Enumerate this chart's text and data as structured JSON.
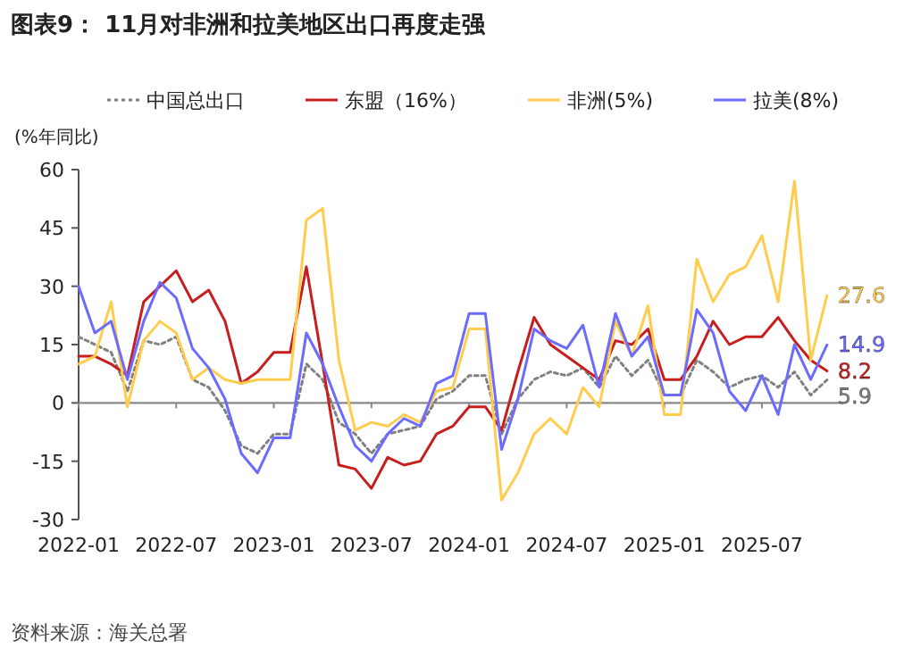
{
  "chart_data": {
    "type": "line",
    "title": "图表9：  11月对非洲和拉美地区出口再度走强",
    "ylabel": "(%年同比)",
    "annotations": [
      "资料来源：海关总署"
    ],
    "x": [
      "2022-01",
      "2022-02",
      "2022-03",
      "2022-04",
      "2022-05",
      "2022-06",
      "2022-07",
      "2022-08",
      "2022-09",
      "2022-10",
      "2022-11",
      "2022-12",
      "2023-01",
      "2023-02",
      "2023-03",
      "2023-04",
      "2023-05",
      "2023-06",
      "2023-07",
      "2023-08",
      "2023-09",
      "2023-10",
      "2023-11",
      "2023-12",
      "2024-01",
      "2024-02",
      "2024-03",
      "2024-04",
      "2024-05",
      "2024-06",
      "2024-07",
      "2024-08",
      "2024-09",
      "2024-10",
      "2024-11",
      "2024-12",
      "2025-01",
      "2025-02",
      "2025-03",
      "2025-04",
      "2025-05",
      "2025-06",
      "2025-07",
      "2025-08",
      "2025-09",
      "2025-10",
      "2025-11"
    ],
    "xlim": [
      "2022-01",
      "2025-12"
    ],
    "xticks": [
      "2022-01",
      "2022-07",
      "2023-01",
      "2023-07",
      "2024-01",
      "2024-07",
      "2025-01",
      "2025-07"
    ],
    "ylim": [
      -30,
      60
    ],
    "yticks": [
      -30,
      -15,
      0,
      15,
      30,
      45,
      60
    ],
    "legend": "top",
    "marker": "none",
    "series": [
      {
        "name": "中国总出口",
        "color": "#808080",
        "line_style": "dotted",
        "values": [
          17,
          15,
          13,
          3,
          16,
          15,
          17,
          6,
          4,
          -2,
          -11,
          -13,
          -8,
          -8,
          10,
          6,
          -5,
          -8,
          -13,
          -8,
          -7,
          -6,
          1,
          3,
          7,
          7,
          -8,
          1,
          6,
          8,
          7,
          9,
          4,
          12,
          7,
          11,
          2,
          2,
          11,
          8,
          4,
          6,
          7,
          4,
          8,
          2,
          5.9
        ],
        "value_labels": [
          null,
          null,
          null,
          null,
          null,
          null,
          null,
          null,
          null,
          null,
          null,
          null,
          null,
          null,
          null,
          null,
          null,
          null,
          null,
          null,
          null,
          null,
          null,
          null,
          null,
          null,
          null,
          null,
          null,
          null,
          null,
          null,
          null,
          null,
          null,
          null,
          null,
          null,
          null,
          null,
          null,
          null,
          null,
          null,
          null,
          null,
          "5.9"
        ]
      },
      {
        "name": "东盟（16%）",
        "color": "#c81e1e",
        "line_style": "solid",
        "values": [
          12,
          12,
          10,
          7,
          26,
          30,
          34,
          26,
          29,
          21,
          5,
          8,
          13,
          13,
          35,
          10,
          -16,
          -17,
          -22,
          -14,
          -16,
          -15,
          -8,
          -6,
          -1,
          -1,
          -7,
          8,
          22,
          15,
          12,
          9,
          6,
          16,
          15,
          19,
          6,
          6,
          12,
          21,
          15,
          17,
          17,
          22,
          16,
          11,
          8.2
        ],
        "value_labels": [
          null,
          null,
          null,
          null,
          null,
          null,
          null,
          null,
          null,
          null,
          null,
          null,
          null,
          null,
          null,
          null,
          null,
          null,
          null,
          null,
          null,
          null,
          null,
          null,
          null,
          null,
          null,
          null,
          null,
          null,
          null,
          null,
          null,
          null,
          null,
          null,
          null,
          null,
          null,
          null,
          null,
          null,
          null,
          null,
          null,
          null,
          "8.2"
        ]
      },
      {
        "name": "非洲(5%)",
        "color": "#ffcc4d",
        "line_style": "solid",
        "values": [
          10,
          12,
          26,
          -1,
          16,
          21,
          18,
          6,
          9,
          6,
          5,
          6,
          6,
          6,
          47,
          50,
          11,
          -7,
          -5,
          -6,
          -3,
          -5,
          3,
          4,
          19,
          19,
          -25,
          -18,
          -8,
          -4,
          -8,
          4,
          -1,
          21,
          12,
          25,
          -3,
          -3,
          37,
          26,
          33,
          35,
          43,
          26,
          57,
          11,
          27.6
        ],
        "value_labels": [
          null,
          null,
          null,
          null,
          null,
          null,
          null,
          null,
          null,
          null,
          null,
          null,
          null,
          null,
          null,
          null,
          null,
          null,
          null,
          null,
          null,
          null,
          null,
          null,
          null,
          null,
          null,
          null,
          null,
          null,
          null,
          null,
          null,
          null,
          null,
          null,
          null,
          null,
          null,
          null,
          null,
          null,
          null,
          null,
          null,
          null,
          "27.6"
        ]
      },
      {
        "name": "拉美(8%)",
        "color": "#6b6bff",
        "line_style": "solid",
        "values": [
          30,
          18,
          21,
          6,
          21,
          31,
          27,
          14,
          9,
          1,
          -13,
          -18,
          -9,
          -9,
          18,
          10,
          -1,
          -11,
          -15,
          -8,
          -4,
          -6,
          5,
          7,
          23,
          23,
          -12,
          1,
          19,
          16,
          14,
          20,
          4,
          23,
          12,
          17,
          2,
          2,
          24,
          18,
          3,
          -2,
          7,
          -3,
          15,
          6,
          14.9
        ],
        "value_labels": [
          null,
          null,
          null,
          null,
          null,
          null,
          null,
          null,
          null,
          null,
          null,
          null,
          null,
          null,
          null,
          null,
          null,
          null,
          null,
          null,
          null,
          null,
          null,
          null,
          null,
          null,
          null,
          null,
          null,
          null,
          null,
          null,
          null,
          null,
          null,
          null,
          null,
          null,
          null,
          null,
          null,
          null,
          null,
          null,
          null,
          null,
          "14.9"
        ]
      }
    ]
  }
}
